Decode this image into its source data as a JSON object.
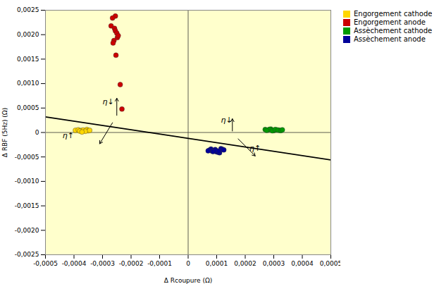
{
  "chart_data": {
    "type": "scatter",
    "title": "",
    "xlabel": "Δ Rcoupure (Ω)",
    "ylabel": "Δ RBF (5Hz) (Ω)",
    "xlim": [
      -0.0005,
      0.0005
    ],
    "ylim": [
      -0.0025,
      0.0025
    ],
    "xticks": [
      {
        "value": -0.0005,
        "label": "-0,0005"
      },
      {
        "value": -0.0004,
        "label": "-0,0004"
      },
      {
        "value": -0.0003,
        "label": "-0,0003"
      },
      {
        "value": -0.0002,
        "label": "-0,0002"
      },
      {
        "value": -0.0001,
        "label": "-0,0001"
      },
      0,
      {
        "value": 0.0001,
        "label": "0,0001"
      },
      {
        "value": 0.0002,
        "label": "0,0002"
      },
      {
        "value": 0.0003,
        "label": "0,0003"
      },
      {
        "value": 0.0004,
        "label": "0,0004"
      },
      {
        "value": 0.0005,
        "label": "0,0005"
      }
    ],
    "yticks": [
      {
        "value": -0.0025,
        "label": "-0,0025"
      },
      {
        "value": -0.002,
        "label": "-0,0020"
      },
      {
        "value": -0.0015,
        "label": "-0,0015"
      },
      {
        "value": -0.001,
        "label": "-0,0010"
      },
      {
        "value": -0.0005,
        "label": "-0,0005"
      },
      0,
      {
        "value": 0.0005,
        "label": "0,0005"
      },
      {
        "value": 0.001,
        "label": "0,0010"
      },
      {
        "value": 0.0015,
        "label": "0,0015"
      },
      {
        "value": 0.002,
        "label": "0,0020"
      },
      {
        "value": 0.0025,
        "label": "0,0025"
      }
    ],
    "grid": true,
    "legend": "upper right",
    "background_color": "#FFFFCC",
    "series": [
      {
        "name": "Engorgement cathode",
        "color": "#FFD700",
        "x": [
          -0.000395,
          -0.000385,
          -0.000375,
          -0.000368,
          -0.000355,
          -0.00035,
          -0.00036,
          -0.000345,
          -0.00038,
          -0.000372
        ],
        "values": [
          4.5e-05,
          5.5e-05,
          4e-05,
          5e-05,
          6e-05,
          3.5e-05,
          2.5e-05,
          4.5e-05,
          3e-05,
          1e-05
        ]
      },
      {
        "name": "Engorgement anode",
        "color": "#CC0000",
        "x": [
          -0.000255,
          -0.000265,
          -0.00027,
          -0.000258,
          -0.000255,
          -0.00025,
          -0.000248,
          -0.000245,
          -0.00026,
          -0.000263,
          -0.000253,
          -0.000238,
          -0.000232
        ],
        "values": [
          0.00238,
          0.00234,
          0.00218,
          0.00213,
          0.00208,
          0.00203,
          0.00194,
          0.00198,
          0.00188,
          0.00183,
          0.00158,
          0.00098,
          0.00048
        ]
      },
      {
        "name": "Assèchement cathode",
        "color": "#009900",
        "x": [
          0.00027,
          0.00028,
          0.00029,
          0.0003,
          0.00031,
          0.00032,
          0.000285,
          0.000295,
          0.000305,
          0.000275,
          0.000315,
          0.000325,
          0.00033
        ],
        "values": [
          6e-05,
          5e-05,
          7e-05,
          4e-05,
          5.5e-05,
          4.5e-05,
          6.5e-05,
          3.5e-05,
          6e-05,
          4.5e-05,
          5e-05,
          4e-05,
          5.5e-05
        ]
      },
      {
        "name": "Assèchement anode",
        "color": "#000099",
        "x": [
          8e-05,
          9e-05,
          0.0001,
          0.00011,
          9.5e-05,
          8.5e-05,
          0.000105,
          7.5e-05,
          0.000115,
          8.8e-05,
          9.8e-05,
          0.000108,
          0.00012,
          7e-05,
          0.000125
        ],
        "values": [
          -0.00034,
          -0.00037,
          -0.000395,
          -0.000415,
          -0.00035,
          -0.000385,
          -0.000405,
          -0.00036,
          -0.00033,
          -0.00039,
          -0.00037,
          -0.00038,
          -0.000345,
          -0.000375,
          -0.000355
        ]
      }
    ],
    "reference_line": {
      "color": "#000000",
      "x": [
        -0.0005,
        0.0005
      ],
      "values": [
        0.00032,
        -0.00056
      ]
    },
    "arrows": [
      {
        "x": -0.00025,
        "y": 0.00035,
        "x_end": -0.00025,
        "y_end": 0.0007
      },
      {
        "x": -0.000265,
        "y": 0.0002,
        "x_end": -0.00031,
        "y_end": -0.00023
      },
      {
        "x": 0.000155,
        "y": 3e-05,
        "x_end": 0.000155,
        "y_end": 0.00028
      },
      {
        "x": 0.000175,
        "y": -0.00013,
        "x_end": 0.000235,
        "y_end": -0.00048
      }
    ],
    "annotations": [
      {
        "text": "η↓",
        "x": -0.0003,
        "y": 0.00058
      },
      {
        "text": "η↑",
        "x": -0.00044,
        "y": -0.00012
      },
      {
        "text": "η↓",
        "x": 0.000115,
        "y": 0.0002
      },
      {
        "text": "η↑",
        "x": 0.000215,
        "y": -0.00037
      }
    ]
  }
}
